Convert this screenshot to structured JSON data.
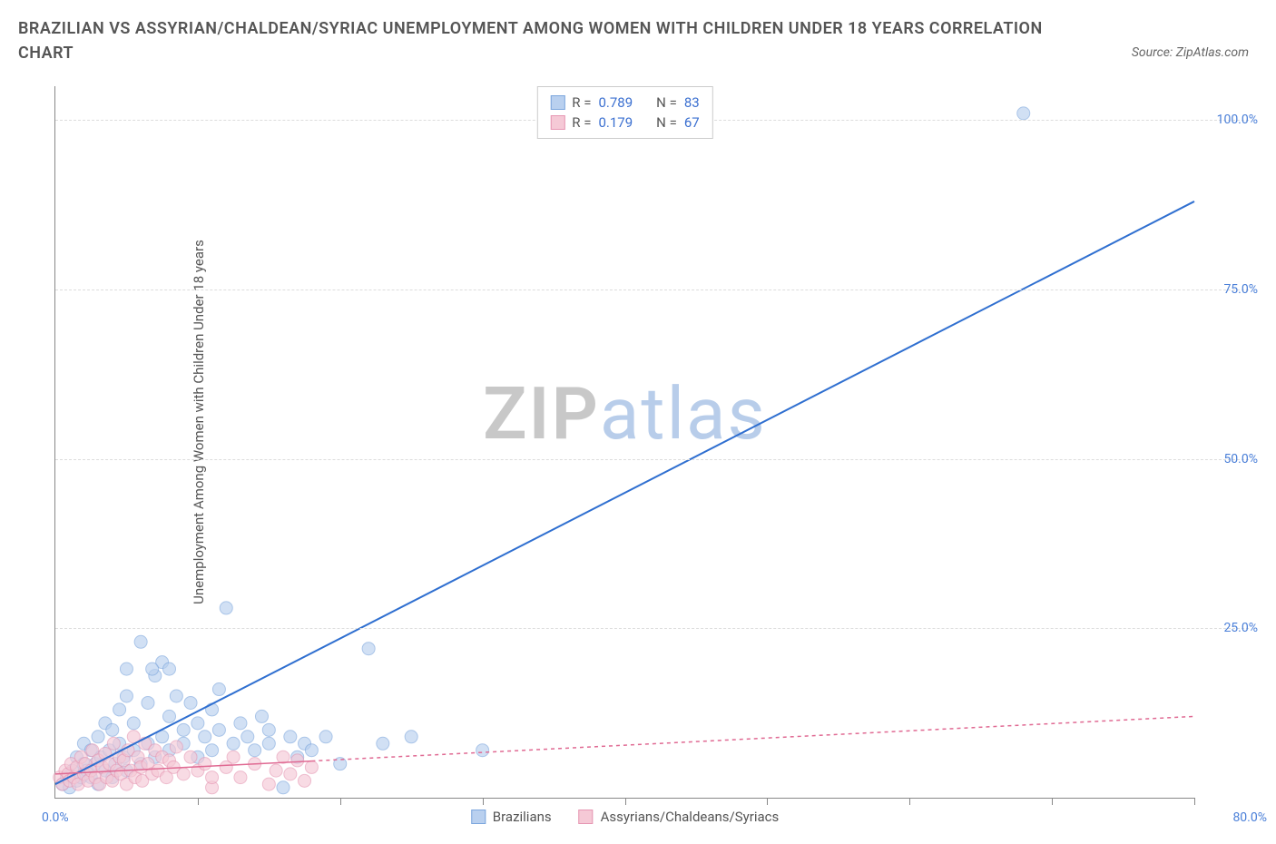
{
  "title": "BRAZILIAN VS ASSYRIAN/CHALDEAN/SYRIAC UNEMPLOYMENT AMONG WOMEN WITH CHILDREN UNDER 18 YEARS CORRELATION CHART",
  "source": "Source: ZipAtlas.com",
  "ylabel": "Unemployment Among Women with Children Under 18 years",
  "watermark_a": "ZIP",
  "watermark_b": "atlas",
  "chart": {
    "type": "scatter",
    "xlim": [
      0,
      80
    ],
    "ylim": [
      0,
      105
    ],
    "x_origin_label": "0.0%",
    "x_max_label": "80.0%",
    "xtick_positions": [
      10,
      20,
      30,
      40,
      50,
      60,
      70,
      80
    ],
    "yticks": [
      {
        "v": 25,
        "label": "25.0%"
      },
      {
        "v": 50,
        "label": "50.0%"
      },
      {
        "v": 75,
        "label": "75.0%"
      },
      {
        "v": 100,
        "label": "100.0%"
      }
    ],
    "grid_color": "#dddddd",
    "background": "#ffffff",
    "series": [
      {
        "name": "Brazilians",
        "color_fill": "#b9d0ef",
        "color_stroke": "#7ca6dd",
        "color_line": "#2f6fd0",
        "marker_radius": 7,
        "marker_opacity": 0.65,
        "line_width": 2,
        "line_dash": "none",
        "R": "0.789",
        "N": "83",
        "trend": {
          "x1": 0,
          "y1": 2,
          "x2": 80,
          "y2": 88
        },
        "points": [
          [
            0.5,
            2
          ],
          [
            0.8,
            3
          ],
          [
            1.0,
            1.5
          ],
          [
            1.2,
            4
          ],
          [
            1.5,
            2.5
          ],
          [
            1.5,
            6
          ],
          [
            1.8,
            3
          ],
          [
            2.0,
            5
          ],
          [
            2.0,
            8
          ],
          [
            2.2,
            4
          ],
          [
            2.5,
            3
          ],
          [
            2.5,
            7
          ],
          [
            2.8,
            5
          ],
          [
            3.0,
            2
          ],
          [
            3.0,
            9
          ],
          [
            3.2,
            6
          ],
          [
            3.5,
            4
          ],
          [
            3.5,
            11
          ],
          [
            3.8,
            7
          ],
          [
            4.0,
            3
          ],
          [
            4.0,
            10
          ],
          [
            4.2,
            5
          ],
          [
            4.5,
            8
          ],
          [
            4.5,
            13
          ],
          [
            4.8,
            6
          ],
          [
            5.0,
            4
          ],
          [
            5.0,
            15
          ],
          [
            5.0,
            19
          ],
          [
            5.5,
            7
          ],
          [
            5.5,
            11
          ],
          [
            6.0,
            5
          ],
          [
            6.0,
            23
          ],
          [
            6.5,
            8
          ],
          [
            6.5,
            14
          ],
          [
            7.0,
            6
          ],
          [
            7.0,
            18
          ],
          [
            7.5,
            9
          ],
          [
            7.5,
            20
          ],
          [
            8.0,
            7
          ],
          [
            8.0,
            12
          ],
          [
            8.5,
            15
          ],
          [
            9.0,
            8
          ],
          [
            9.0,
            10
          ],
          [
            9.5,
            14
          ],
          [
            10.0,
            6
          ],
          [
            10.0,
            11
          ],
          [
            10.5,
            9
          ],
          [
            11.0,
            7
          ],
          [
            11.0,
            13
          ],
          [
            11.5,
            10
          ],
          [
            12.0,
            28
          ],
          [
            12.5,
            8
          ],
          [
            13.0,
            11
          ],
          [
            13.5,
            9
          ],
          [
            14.0,
            7
          ],
          [
            14.5,
            12
          ],
          [
            15.0,
            8
          ],
          [
            15.0,
            10
          ],
          [
            16.0,
            1.5
          ],
          [
            16.5,
            9
          ],
          [
            17.0,
            6
          ],
          [
            17.5,
            8
          ],
          [
            18.0,
            7
          ],
          [
            19.0,
            9
          ],
          [
            20.0,
            5
          ],
          [
            22.0,
            22
          ],
          [
            23.0,
            8
          ],
          [
            25.0,
            9
          ],
          [
            6.8,
            19
          ],
          [
            8.0,
            19
          ],
          [
            11.5,
            16
          ],
          [
            30.0,
            7
          ],
          [
            68.0,
            101
          ]
        ]
      },
      {
        "name": "Assyrians/Chaldeans/Syriacs",
        "color_fill": "#f5c9d6",
        "color_stroke": "#e697b3",
        "color_line": "#e06a93",
        "marker_radius": 7,
        "marker_opacity": 0.65,
        "line_width": 1.5,
        "line_dash": "4,4",
        "R": "0.179",
        "N": "67",
        "trend": {
          "x1": 0,
          "y1": 3.5,
          "x2": 80,
          "y2": 12
        },
        "trend_solid_until_x": 18,
        "points": [
          [
            0.3,
            3
          ],
          [
            0.5,
            2
          ],
          [
            0.7,
            4
          ],
          [
            0.9,
            3.5
          ],
          [
            1.0,
            2.5
          ],
          [
            1.1,
            5
          ],
          [
            1.3,
            3
          ],
          [
            1.5,
            4.5
          ],
          [
            1.6,
            2
          ],
          [
            1.8,
            6
          ],
          [
            2.0,
            3.5
          ],
          [
            2.1,
            5
          ],
          [
            2.3,
            2.5
          ],
          [
            2.5,
            4
          ],
          [
            2.6,
            7
          ],
          [
            2.8,
            3
          ],
          [
            3.0,
            5.5
          ],
          [
            3.1,
            2
          ],
          [
            3.3,
            4.5
          ],
          [
            3.5,
            6.5
          ],
          [
            3.6,
            3
          ],
          [
            3.8,
            5
          ],
          [
            4.0,
            2.5
          ],
          [
            4.1,
            8
          ],
          [
            4.3,
            4
          ],
          [
            4.5,
            6
          ],
          [
            4.6,
            3.5
          ],
          [
            4.8,
            5.5
          ],
          [
            5.0,
            2
          ],
          [
            5.1,
            7
          ],
          [
            5.3,
            4
          ],
          [
            5.5,
            9
          ],
          [
            5.6,
            3
          ],
          [
            5.8,
            6
          ],
          [
            6.0,
            4.5
          ],
          [
            6.1,
            2.5
          ],
          [
            6.3,
            8
          ],
          [
            6.5,
            5
          ],
          [
            6.8,
            3.5
          ],
          [
            7.0,
            7
          ],
          [
            7.2,
            4
          ],
          [
            7.5,
            6
          ],
          [
            7.8,
            3
          ],
          [
            8.0,
            5.5
          ],
          [
            8.3,
            4.5
          ],
          [
            8.5,
            7.5
          ],
          [
            9.0,
            3.5
          ],
          [
            9.5,
            6
          ],
          [
            10.0,
            4
          ],
          [
            10.5,
            5
          ],
          [
            11.0,
            1.5
          ],
          [
            11.0,
            3
          ],
          [
            12.0,
            4.5
          ],
          [
            12.5,
            6
          ],
          [
            13.0,
            3
          ],
          [
            14.0,
            5
          ],
          [
            15.0,
            2
          ],
          [
            15.5,
            4
          ],
          [
            16.0,
            6
          ],
          [
            16.5,
            3.5
          ],
          [
            17.0,
            5.5
          ],
          [
            17.5,
            2.5
          ],
          [
            18.0,
            4.5
          ]
        ]
      }
    ],
    "stats_legend": {
      "rows": [
        {
          "swatch": "#b9d0ef",
          "border": "#7ca6dd",
          "R_label": "R =",
          "R_val": "0.789",
          "N_label": "N =",
          "N_val": "83"
        },
        {
          "swatch": "#f5c9d6",
          "border": "#e697b3",
          "R_label": "R =",
          "R_val": "0.179",
          "N_label": "N =",
          "N_val": "67"
        }
      ]
    },
    "bottom_legend": [
      {
        "swatch": "#b9d0ef",
        "border": "#7ca6dd",
        "label": "Brazilians"
      },
      {
        "swatch": "#f5c9d6",
        "border": "#e697b3",
        "label": "Assyrians/Chaldeans/Syriacs"
      }
    ]
  }
}
